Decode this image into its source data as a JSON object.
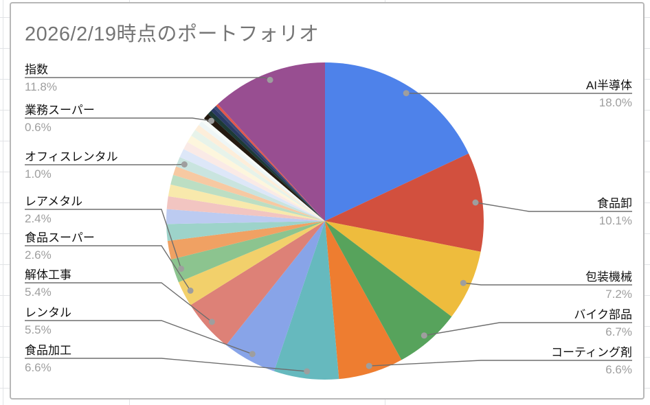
{
  "chart": {
    "title": "2026/2/19時点のポートフォリオ"
  },
  "chart_data": {
    "type": "pie",
    "title": "2026/2/19時点のポートフォリオ",
    "legend_position": "labeled-callouts",
    "start_angle_deg": 0,
    "direction": "clockwise",
    "slices": [
      {
        "label": "AI半導体",
        "value": 18.0,
        "pct_label": "18.0%",
        "color": "#4e82ea",
        "labeled": true,
        "side": "right"
      },
      {
        "label": "食品卸",
        "value": 10.1,
        "pct_label": "10.1%",
        "color": "#d2503e",
        "labeled": true,
        "side": "right"
      },
      {
        "label": "包装機械",
        "value": 7.2,
        "pct_label": "7.2%",
        "color": "#eebc3d",
        "labeled": true,
        "side": "right"
      },
      {
        "label": "バイク部品",
        "value": 6.7,
        "pct_label": "6.7%",
        "color": "#57a35c",
        "labeled": true,
        "side": "right"
      },
      {
        "label": "コーティング剤",
        "value": 6.6,
        "pct_label": "6.6%",
        "color": "#ee7d30",
        "labeled": true,
        "side": "right"
      },
      {
        "label": "食品加工",
        "value": 6.6,
        "pct_label": "6.6%",
        "color": "#66b9be",
        "labeled": true,
        "side": "left"
      },
      {
        "label": "レンタル",
        "value": 5.5,
        "pct_label": "5.5%",
        "color": "#88a4e8",
        "labeled": true,
        "side": "left"
      },
      {
        "label": "解体工事",
        "value": 5.4,
        "pct_label": "5.4%",
        "color": "#dd8177",
        "labeled": true,
        "side": "left"
      },
      {
        "label": "食品スーパー",
        "value": 2.6,
        "pct_label": "2.6%",
        "color": "#f2d06b",
        "labeled": true,
        "side": "left"
      },
      {
        "label": "レアメタル",
        "value": 2.4,
        "pct_label": "2.4%",
        "color": "#8cc48f",
        "labeled": true,
        "side": "left"
      },
      {
        "label": "",
        "value": 1.9,
        "pct_label": "",
        "color": "#f0a163",
        "labeled": false
      },
      {
        "label": "",
        "value": 1.7,
        "pct_label": "",
        "color": "#9dd3ca",
        "labeled": false
      },
      {
        "label": "",
        "value": 1.5,
        "pct_label": "",
        "color": "#bccbf1",
        "labeled": false
      },
      {
        "label": "",
        "value": 1.3,
        "pct_label": "",
        "color": "#f2c5c1",
        "labeled": false
      },
      {
        "label": "",
        "value": 1.2,
        "pct_label": "",
        "color": "#f8e9ac",
        "labeled": false
      },
      {
        "label": "",
        "value": 1.0,
        "pct_label": "",
        "color": "#bcdec3",
        "labeled": false
      },
      {
        "label": "",
        "value": 0.9,
        "pct_label": "",
        "color": "#f7c9a2",
        "labeled": false
      },
      {
        "label": "オフィスレンタル",
        "value": 1.0,
        "pct_label": "1.0%",
        "color": "#c9e4df",
        "labeled": true,
        "side": "left"
      },
      {
        "label": "",
        "value": 0.9,
        "pct_label": "",
        "color": "#dde7f8",
        "labeled": false
      },
      {
        "label": "",
        "value": 0.8,
        "pct_label": "",
        "color": "#faeae6",
        "labeled": false
      },
      {
        "label": "",
        "value": 0.75,
        "pct_label": "",
        "color": "#fdf6dd",
        "labeled": false
      },
      {
        "label": "",
        "value": 0.7,
        "pct_label": "",
        "color": "#e7f3ea",
        "labeled": false
      },
      {
        "label": "",
        "value": 0.6,
        "pct_label": "",
        "color": "#fdeeda",
        "labeled": false
      },
      {
        "label": "",
        "value": 0.45,
        "pct_label": "",
        "color": "#eef6f6",
        "labeled": false
      },
      {
        "label": "",
        "value": 0.4,
        "pct_label": "",
        "color": "#f7fbf8",
        "labeled": false
      },
      {
        "label": "業務スーパー",
        "value": 0.6,
        "pct_label": "0.6%",
        "color": "#241a10",
        "labeled": true,
        "side": "left"
      },
      {
        "label": "",
        "value": 0.45,
        "pct_label": "",
        "color": "#1d3a36",
        "labeled": false
      },
      {
        "label": "",
        "value": 0.4,
        "pct_label": "",
        "color": "#2b3a66",
        "labeled": false
      },
      {
        "label": "",
        "value": 0.3,
        "pct_label": "",
        "color": "#3d4a78",
        "labeled": false
      },
      {
        "label": "",
        "value": 0.25,
        "pct_label": "",
        "color": "#e2574c",
        "labeled": false
      },
      {
        "label": "指数",
        "value": 11.8,
        "pct_label": "11.8%",
        "color": "#984e91",
        "labeled": true,
        "side": "left"
      }
    ],
    "style": {
      "title_color": "#757575",
      "label_color": "#111111",
      "pct_color": "#9e9e9e",
      "leader_color": "#6e6e6e",
      "dot_color": "#9e9e9e",
      "card_border": "#b7b7b7",
      "gridline_color": "#e1e3e6"
    }
  }
}
